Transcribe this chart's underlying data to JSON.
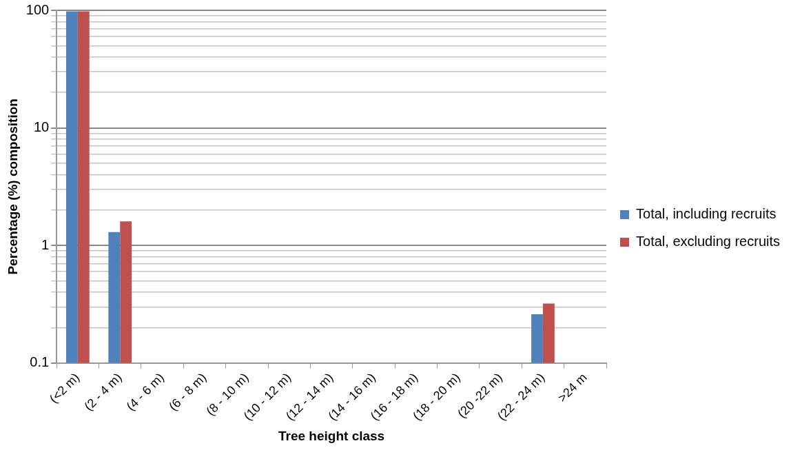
{
  "chart_data": {
    "type": "bar",
    "xlabel": "Tree height class",
    "ylabel": "Percentage (%) composition",
    "categories": [
      "(<2 m)",
      "(2 - 4 m)",
      "(4 - 6 m)",
      "(6 - 8 m)",
      "(8 - 10 m)",
      "(10 - 12 m)",
      "(12 - 14 m)",
      "(14 - 16 m)",
      "(16 - 18 m)",
      "(18 - 20 m)",
      "(20 -22 m)",
      "(22 - 24 m)",
      ">24 m"
    ],
    "series": [
      {
        "name": "Total, including recruits",
        "color": "#4f81bd",
        "values": [
          98,
          1.3,
          null,
          null,
          null,
          null,
          null,
          null,
          null,
          null,
          null,
          0.26,
          null
        ]
      },
      {
        "name": "Total, excluding recruits",
        "color": "#c0504d",
        "values": [
          98,
          1.6,
          null,
          null,
          null,
          null,
          null,
          null,
          null,
          null,
          null,
          0.32,
          null
        ]
      }
    ],
    "log": "y",
    "ylim": [
      0.1,
      100
    ],
    "yticks": [
      0.1,
      {
        "value": 0.2,
        "label": null
      },
      {
        "value": 0.3,
        "label": null
      },
      {
        "value": 0.4,
        "label": null
      },
      {
        "value": 0.5,
        "label": null
      },
      {
        "value": 0.6,
        "label": null
      },
      {
        "value": 0.7,
        "label": null
      },
      {
        "value": 0.8,
        "label": null
      },
      {
        "value": 0.9,
        "label": null
      },
      1,
      {
        "value": 2,
        "label": null
      },
      {
        "value": 3,
        "label": null
      },
      {
        "value": 4,
        "label": null
      },
      {
        "value": 5,
        "label": null
      },
      {
        "value": 6,
        "label": null
      },
      {
        "value": 7,
        "label": null
      },
      {
        "value": 8,
        "label": null
      },
      {
        "value": 9,
        "label": null
      },
      10,
      {
        "value": 20,
        "label": null
      },
      {
        "value": 30,
        "label": null
      },
      {
        "value": 40,
        "label": null
      },
      {
        "value": 50,
        "label": null
      },
      {
        "value": 60,
        "label": null
      },
      {
        "value": 70,
        "label": null
      },
      {
        "value": 80,
        "label": null
      },
      {
        "value": 90,
        "label": null
      },
      100
    ],
    "grid": "y",
    "legend": "right"
  }
}
